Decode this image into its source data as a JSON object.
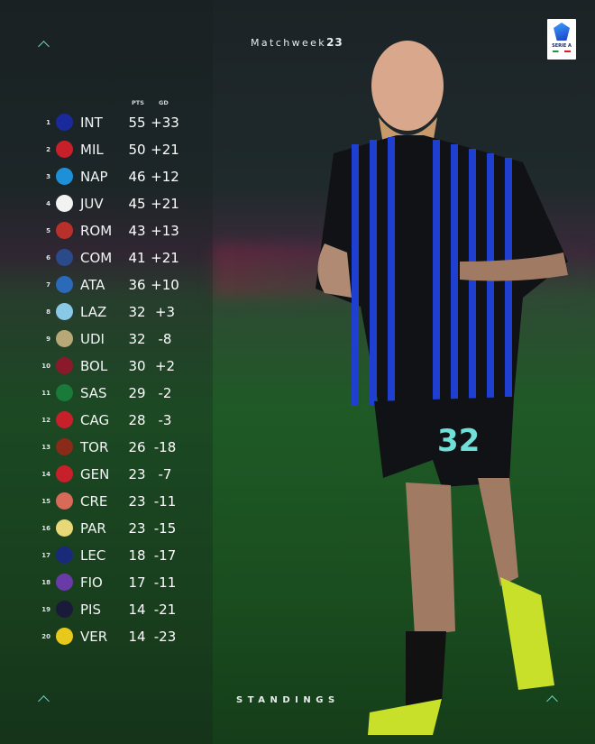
{
  "header": {
    "title_prefix": "Matchweek",
    "title_number": "23",
    "logo_text": "SERIE A"
  },
  "table": {
    "columns": {
      "pts": "PTS",
      "gd": "GD"
    },
    "rows": [
      {
        "rank": "1",
        "team": "INT",
        "pts": "55",
        "gd": "+33",
        "color": "#1a2a9a"
      },
      {
        "rank": "2",
        "team": "MIL",
        "pts": "50",
        "gd": "+21",
        "color": "#c8202a"
      },
      {
        "rank": "3",
        "team": "NAP",
        "pts": "46",
        "gd": "+12",
        "color": "#1e90d8"
      },
      {
        "rank": "4",
        "team": "JUV",
        "pts": "45",
        "gd": "+21",
        "color": "#f2f2f2"
      },
      {
        "rank": "5",
        "team": "ROM",
        "pts": "43",
        "gd": "+13",
        "color": "#b8302a"
      },
      {
        "rank": "6",
        "team": "COM",
        "pts": "41",
        "gd": "+21",
        "color": "#2a4a8a"
      },
      {
        "rank": "7",
        "team": "ATA",
        "pts": "36",
        "gd": "+10",
        "color": "#2a6ab8"
      },
      {
        "rank": "8",
        "team": "LAZ",
        "pts": "32",
        "gd": "+3",
        "color": "#8ac8e8"
      },
      {
        "rank": "9",
        "team": "UDI",
        "pts": "32",
        "gd": "-8",
        "color": "#b8a878"
      },
      {
        "rank": "10",
        "team": "BOL",
        "pts": "30",
        "gd": "+2",
        "color": "#8a1a2a"
      },
      {
        "rank": "11",
        "team": "SAS",
        "pts": "29",
        "gd": "-2",
        "color": "#1a7a3a"
      },
      {
        "rank": "12",
        "team": "CAG",
        "pts": "28",
        "gd": "-3",
        "color": "#c8202a"
      },
      {
        "rank": "13",
        "team": "TOR",
        "pts": "26",
        "gd": "-18",
        "color": "#8a2a1a"
      },
      {
        "rank": "14",
        "team": "GEN",
        "pts": "23",
        "gd": "-7",
        "color": "#c8202a"
      },
      {
        "rank": "15",
        "team": "CRE",
        "pts": "23",
        "gd": "-11",
        "color": "#d86a5a"
      },
      {
        "rank": "16",
        "team": "PAR",
        "pts": "23",
        "gd": "-15",
        "color": "#e8d878"
      },
      {
        "rank": "17",
        "team": "LEC",
        "pts": "18",
        "gd": "-17",
        "color": "#1a2a7a"
      },
      {
        "rank": "18",
        "team": "FIO",
        "pts": "17",
        "gd": "-11",
        "color": "#6a3aa8"
      },
      {
        "rank": "19",
        "team": "PIS",
        "pts": "14",
        "gd": "-21",
        "color": "#1a1a3a"
      },
      {
        "rank": "20",
        "team": "VER",
        "pts": "14",
        "gd": "-23",
        "color": "#e8c81a"
      }
    ]
  },
  "footer": {
    "label": "STANDINGS"
  },
  "photo": {
    "jersey_number": "32"
  },
  "colors": {
    "accent": "#5fd6c4",
    "kit_blue": "#1f3fd0",
    "kit_black": "#101216"
  }
}
